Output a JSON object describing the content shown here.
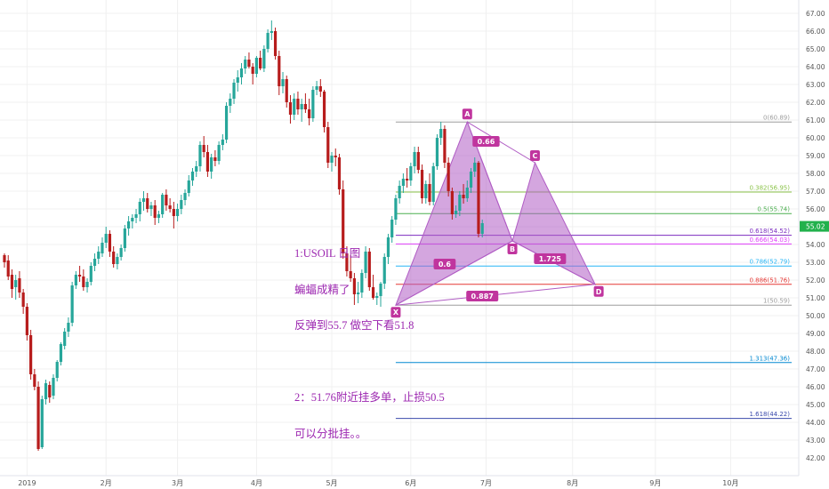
{
  "chart_data": {
    "type": "candlestick",
    "symbol": "USOIL",
    "period": "日图",
    "price_axis": {
      "ylim": [
        41.0,
        67.5
      ],
      "ticks": [
        "42.00",
        "43.00",
        "44.00",
        "45.00",
        "46.00",
        "47.00",
        "48.00",
        "49.00",
        "50.00",
        "51.00",
        "52.00",
        "53.00",
        "54.00",
        "55.00",
        "56.00",
        "57.00",
        "58.00",
        "59.00",
        "60.00",
        "61.00",
        "62.00",
        "63.00",
        "64.00",
        "65.00",
        "66.00",
        "67.00"
      ],
      "last_price": "55.02"
    },
    "time_axis": {
      "labels": [
        {
          "text": "2019",
          "index": 6
        },
        {
          "text": "2月",
          "index": 27
        },
        {
          "text": "3月",
          "index": 46
        },
        {
          "text": "4月",
          "index": 67
        },
        {
          "text": "5月",
          "index": 87
        },
        {
          "text": "6月",
          "index": 108
        },
        {
          "text": "7月",
          "index": 128
        },
        {
          "text": "8月",
          "index": 151
        },
        {
          "text": "9月",
          "index": 173
        },
        {
          "text": "10月",
          "index": 193
        }
      ]
    },
    "colors": {
      "up": "#26a69a",
      "down": "#b71c1c",
      "pattern": "#b05cc4",
      "label_bg": "#c0359e",
      "grid": "#f0f0f0",
      "last_price_bg": "#22b14c"
    },
    "candles": [
      [
        53.4,
        53.5,
        52.7,
        53.0
      ],
      [
        53.1,
        53.4,
        52.0,
        52.2
      ],
      [
        52.3,
        52.6,
        51.0,
        51.5
      ],
      [
        51.6,
        52.3,
        50.9,
        52.0
      ],
      [
        52.1,
        52.5,
        51.0,
        51.3
      ],
      [
        51.3,
        51.5,
        50.1,
        50.5
      ],
      [
        50.5,
        50.7,
        48.6,
        48.9
      ],
      [
        48.9,
        49.2,
        46.4,
        46.7
      ],
      [
        46.7,
        47.0,
        45.8,
        46.0
      ],
      [
        46.0,
        46.3,
        42.4,
        42.5
      ],
      [
        42.6,
        45.5,
        42.5,
        45.3
      ],
      [
        45.3,
        46.4,
        45.0,
        46.2
      ],
      [
        46.1,
        46.3,
        45.1,
        45.4
      ],
      [
        45.5,
        46.7,
        45.3,
        46.5
      ],
      [
        46.5,
        47.5,
        46.3,
        47.4
      ],
      [
        47.4,
        48.5,
        47.2,
        48.4
      ],
      [
        48.3,
        49.3,
        48.1,
        49.1
      ],
      [
        49.1,
        49.9,
        48.8,
        49.6
      ],
      [
        49.6,
        51.9,
        49.4,
        51.7
      ],
      [
        51.7,
        52.5,
        51.5,
        52.3
      ],
      [
        52.3,
        52.8,
        51.9,
        52.2
      ],
      [
        52.2,
        52.6,
        51.4,
        51.6
      ],
      [
        51.6,
        52.1,
        51.3,
        51.9
      ],
      [
        51.9,
        53.0,
        51.7,
        52.8
      ],
      [
        52.8,
        53.5,
        52.5,
        53.2
      ],
      [
        53.2,
        53.9,
        52.9,
        53.6
      ],
      [
        53.5,
        54.4,
        53.3,
        54.1
      ],
      [
        54.1,
        55.0,
        53.8,
        54.6
      ],
      [
        54.6,
        54.8,
        53.3,
        53.6
      ],
      [
        53.6,
        53.9,
        52.7,
        52.9
      ],
      [
        52.9,
        53.5,
        52.6,
        53.3
      ],
      [
        53.3,
        54.0,
        53.1,
        53.8
      ],
      [
        53.8,
        55.1,
        53.6,
        54.9
      ],
      [
        54.9,
        55.6,
        54.5,
        55.3
      ],
      [
        55.3,
        55.7,
        54.9,
        55.5
      ],
      [
        55.5,
        56.0,
        55.2,
        55.7
      ],
      [
        55.7,
        56.6,
        55.3,
        56.4
      ],
      [
        56.4,
        57.0,
        55.9,
        56.6
      ],
      [
        56.6,
        56.9,
        55.8,
        56.0
      ],
      [
        56.0,
        56.4,
        55.6,
        56.2
      ],
      [
        56.2,
        56.5,
        55.1,
        55.5
      ],
      [
        55.5,
        55.9,
        55.2,
        55.7
      ],
      [
        55.7,
        56.9,
        55.5,
        56.8
      ],
      [
        56.8,
        57.1,
        55.9,
        56.2
      ],
      [
        56.2,
        56.6,
        55.8,
        56.0
      ],
      [
        56.0,
        56.4,
        54.9,
        55.6
      ],
      [
        55.6,
        56.3,
        55.3,
        56.0
      ],
      [
        56.0,
        56.8,
        55.7,
        56.5
      ],
      [
        56.5,
        57.1,
        56.2,
        56.9
      ],
      [
        56.9,
        57.9,
        56.7,
        57.6
      ],
      [
        57.6,
        58.3,
        57.3,
        58.1
      ],
      [
        58.1,
        58.7,
        57.8,
        58.4
      ],
      [
        58.4,
        59.8,
        58.1,
        59.6
      ],
      [
        59.6,
        60.1,
        58.9,
        59.2
      ],
      [
        59.2,
        59.6,
        57.8,
        58.1
      ],
      [
        58.1,
        59.1,
        57.7,
        58.9
      ],
      [
        58.9,
        59.3,
        58.4,
        58.7
      ],
      [
        58.7,
        59.8,
        58.5,
        59.6
      ],
      [
        59.6,
        60.2,
        59.3,
        59.9
      ],
      [
        59.9,
        62.0,
        59.7,
        61.8
      ],
      [
        61.8,
        62.5,
        61.4,
        62.2
      ],
      [
        62.2,
        63.3,
        61.9,
        63.1
      ],
      [
        63.1,
        63.8,
        62.6,
        63.4
      ],
      [
        63.4,
        64.2,
        63.0,
        63.9
      ],
      [
        63.9,
        64.6,
        63.6,
        64.4
      ],
      [
        64.4,
        64.8,
        63.9,
        64.0
      ],
      [
        64.0,
        64.2,
        63.0,
        63.6
      ],
      [
        63.6,
        64.6,
        63.4,
        64.5
      ],
      [
        64.5,
        64.9,
        63.8,
        63.9
      ],
      [
        63.9,
        65.2,
        63.7,
        65.0
      ],
      [
        65.0,
        66.1,
        64.8,
        65.9
      ],
      [
        65.9,
        66.6,
        65.5,
        66.0
      ],
      [
        66.0,
        66.2,
        64.4,
        64.6
      ],
      [
        64.6,
        64.9,
        62.4,
        62.9
      ],
      [
        62.9,
        63.7,
        62.5,
        63.3
      ],
      [
        63.3,
        63.5,
        61.7,
        62.0
      ],
      [
        62.0,
        62.4,
        60.8,
        61.3
      ],
      [
        61.3,
        62.5,
        61.0,
        62.2
      ],
      [
        62.2,
        62.6,
        61.3,
        61.6
      ],
      [
        61.6,
        62.2,
        60.9,
        61.9
      ],
      [
        61.9,
        62.5,
        61.4,
        61.6
      ],
      [
        61.6,
        62.2,
        60.7,
        61.1
      ],
      [
        61.1,
        62.9,
        60.9,
        62.7
      ],
      [
        62.7,
        63.2,
        62.4,
        62.9
      ],
      [
        62.9,
        63.3,
        62.3,
        62.6
      ],
      [
        62.6,
        62.7,
        60.3,
        60.6
      ],
      [
        60.6,
        60.9,
        58.3,
        58.6
      ],
      [
        58.6,
        59.2,
        58.1,
        59.0
      ],
      [
        59.0,
        59.4,
        58.4,
        58.9
      ],
      [
        58.9,
        59.1,
        56.8,
        57.1
      ],
      [
        57.1,
        57.6,
        53.2,
        53.5
      ],
      [
        53.5,
        53.9,
        52.2,
        52.5
      ],
      [
        52.5,
        53.4,
        51.9,
        52.1
      ],
      [
        52.1,
        52.4,
        50.6,
        51.2
      ],
      [
        51.2,
        51.9,
        50.7,
        51.3
      ],
      [
        51.3,
        52.6,
        51.0,
        52.4
      ],
      [
        52.4,
        53.9,
        52.1,
        53.6
      ],
      [
        53.6,
        53.8,
        51.4,
        51.6
      ],
      [
        51.6,
        52.3,
        50.9,
        51.0
      ],
      [
        51.0,
        51.3,
        50.6,
        51.1
      ],
      [
        51.1,
        51.9,
        50.5,
        51.8
      ],
      [
        51.8,
        53.5,
        51.5,
        53.3
      ],
      [
        53.3,
        54.6,
        52.9,
        54.4
      ],
      [
        54.4,
        55.6,
        54.1,
        55.4
      ],
      [
        55.4,
        56.8,
        55.1,
        56.6
      ],
      [
        56.6,
        57.6,
        56.3,
        57.3
      ],
      [
        57.3,
        58.0,
        56.9,
        57.7
      ],
      [
        57.7,
        58.3,
        57.2,
        57.6
      ],
      [
        57.6,
        58.6,
        57.3,
        58.4
      ],
      [
        58.4,
        59.5,
        58.0,
        59.2
      ],
      [
        59.2,
        59.5,
        58.0,
        58.2
      ],
      [
        58.2,
        58.5,
        56.3,
        56.6
      ],
      [
        56.6,
        57.6,
        56.3,
        57.4
      ],
      [
        57.4,
        58.0,
        56.2,
        56.4
      ],
      [
        56.4,
        58.6,
        56.2,
        58.4
      ],
      [
        58.4,
        60.2,
        58.2,
        60.0
      ],
      [
        60.0,
        60.9,
        59.6,
        60.5
      ],
      [
        60.5,
        60.7,
        58.3,
        58.6
      ],
      [
        58.6,
        58.9,
        56.7,
        57.0
      ],
      [
        57.0,
        57.2,
        55.4,
        55.7
      ],
      [
        55.7,
        56.2,
        55.5,
        55.9
      ],
      [
        55.9,
        57.0,
        55.6,
        56.8
      ],
      [
        56.8,
        57.4,
        56.3,
        56.6
      ],
      [
        56.6,
        57.6,
        56.4,
        57.2
      ],
      [
        57.2,
        58.3,
        56.9,
        58.1
      ],
      [
        58.1,
        58.9,
        57.8,
        58.6
      ],
      [
        58.6,
        58.7,
        54.4,
        54.6
      ],
      [
        54.6,
        55.4,
        54.4,
        55.2
      ]
    ],
    "fibonacci": {
      "levels": [
        {
          "label": "0(60.89)",
          "price": 60.89,
          "color": "#9e9e9e"
        },
        {
          "label": "0.382(56.95)",
          "price": 56.95,
          "color": "#8bc34a"
        },
        {
          "label": "0.5(55.74)",
          "price": 55.74,
          "color": "#4caf50"
        },
        {
          "label": "0.618(54.52)",
          "price": 54.52,
          "color": "#7b2cbf"
        },
        {
          "label": "0.666(54.03)",
          "price": 54.03,
          "color": "#e040fb"
        },
        {
          "label": "0.786(52.79)",
          "price": 52.79,
          "color": "#29b6f6"
        },
        {
          "label": "0.886(51.76)",
          "price": 51.76,
          "color": "#e53935"
        },
        {
          "label": "1(50.59)",
          "price": 50.59,
          "color": "#9e9e9e"
        },
        {
          "label": "1.313(47.36)",
          "price": 47.36,
          "color": "#0288d1"
        },
        {
          "label": "1.618(44.22)",
          "price": 44.22,
          "color": "#3949ab"
        }
      ],
      "start_index": 104
    },
    "harmonic_pattern": {
      "points": [
        {
          "label": "X",
          "index": 104,
          "price": 50.59
        },
        {
          "label": "A",
          "index": 123,
          "price": 60.89
        },
        {
          "label": "B",
          "index": 135,
          "price": 54.2
        },
        {
          "label": "C",
          "index": 141,
          "price": 58.6
        },
        {
          "label": "D",
          "index": 157,
          "price": 51.76
        }
      ],
      "ratios": [
        {
          "text": "0.6",
          "index": 117,
          "price": 52.9
        },
        {
          "text": "0.66",
          "index": 128,
          "price": 59.8
        },
        {
          "text": "1.725",
          "index": 145,
          "price": 53.2
        },
        {
          "text": "0.887",
          "index": 127,
          "price": 51.1
        }
      ]
    },
    "annotation": {
      "color": "#9c27b0",
      "lines": [
        "1:USOIL 日图",
        "蝙蝠成精了",
        "反弹到55.7 做空下看51.8",
        "",
        "2：51.76附近挂多单，止损50.5",
        "可以分批挂。。"
      ]
    }
  }
}
